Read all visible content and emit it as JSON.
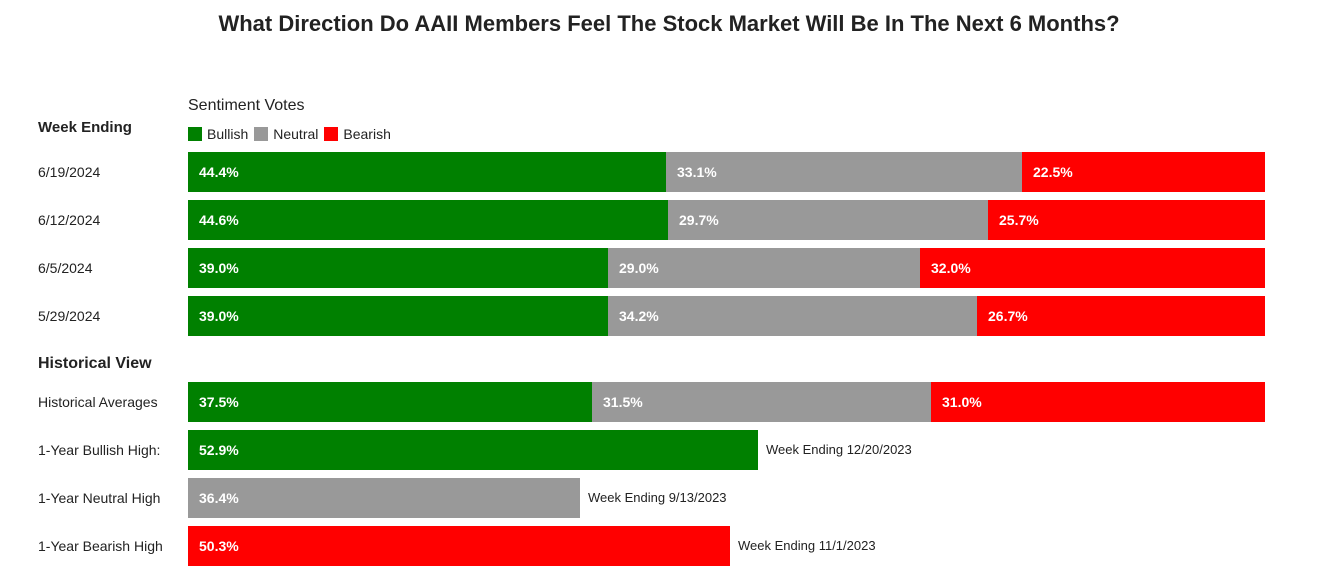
{
  "title": "What Direction Do AAII Members Feel The Stock Market Will Be In The Next 6 Months?",
  "colors": {
    "bullish": "#008000",
    "neutral": "#999999",
    "bearish": "#ff0000"
  },
  "headers": {
    "week_ending": "Week Ending",
    "historical_view": "Historical View"
  },
  "chart_data": {
    "type": "bar",
    "orientation": "horizontal",
    "stacked": true,
    "legend_title": "Sentiment Votes",
    "legend_position": "top-left",
    "legend": [
      "Bullish",
      "Neutral",
      "Bearish"
    ],
    "weekly": [
      {
        "label": "6/19/2024",
        "values": [
          44.4,
          33.1,
          22.5
        ],
        "display": [
          "44.4%",
          "33.1%",
          "22.5%"
        ]
      },
      {
        "label": "6/12/2024",
        "values": [
          44.6,
          29.7,
          25.7
        ],
        "display": [
          "44.6%",
          "29.7%",
          "25.7%"
        ]
      },
      {
        "label": "6/5/2024",
        "values": [
          39.0,
          29.0,
          32.0
        ],
        "display": [
          "39.0%",
          "29.0%",
          "32.0%"
        ]
      },
      {
        "label": "5/29/2024",
        "values": [
          39.0,
          34.2,
          26.7
        ],
        "display": [
          "39.0%",
          "34.2%",
          "26.7%"
        ]
      }
    ],
    "historical": {
      "label": "Historical Averages",
      "values": [
        37.5,
        31.5,
        31.0
      ],
      "display": [
        "37.5%",
        "31.5%",
        "31.0%"
      ]
    },
    "highs": [
      {
        "label": "1-Year Bullish High:",
        "series": "bullish",
        "value": 52.9,
        "display": "52.9%",
        "note": "Week Ending 12/20/2023"
      },
      {
        "label": "1-Year Neutral High",
        "series": "neutral",
        "value": 36.4,
        "display": "36.4%",
        "note": "Week Ending 9/13/2023"
      },
      {
        "label": "1-Year Bearish High",
        "series": "bearish",
        "value": 50.3,
        "display": "50.3%",
        "note": "Week Ending 11/1/2023"
      }
    ]
  }
}
